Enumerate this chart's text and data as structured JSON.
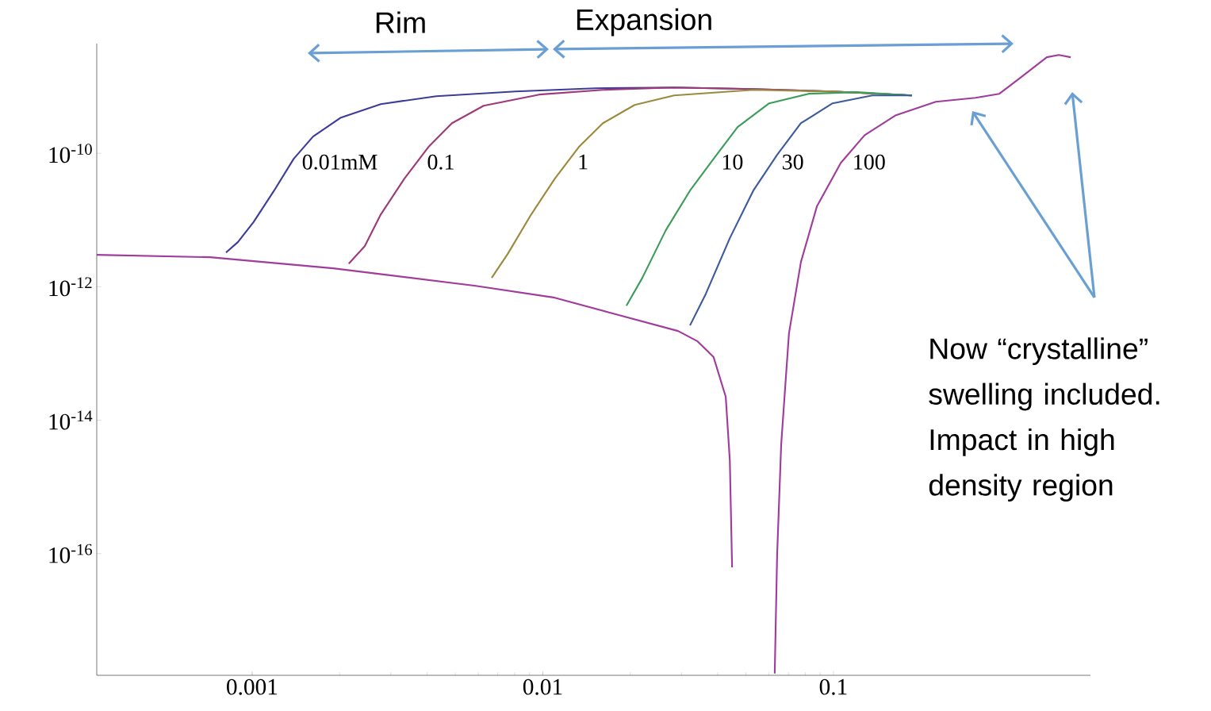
{
  "chart_data": {
    "type": "line",
    "log": "xy",
    "xlim": [
      0.000292,
      0.766
    ],
    "ylim": [
      1.5e-18,
      4.4e-09
    ],
    "xticks": [
      0.001,
      0.01,
      0.1
    ],
    "yticks": [
      {
        "value": 1e-10,
        "label": "10$^{-10}$"
      },
      {
        "value": 1e-12,
        "label": "10$^{-12}$"
      },
      {
        "value": 1e-14,
        "label": "10$^{-14}$"
      },
      {
        "value": 1e-16,
        "label": "10$^{-16}$"
      }
    ],
    "annotations": [
      "Rim",
      "Expansion",
      "Now “crystalline” swelling included. Impact in high density region"
    ],
    "series": [
      {
        "name": "0.01mM",
        "color": "#3d3d99",
        "x": [
          0.000813,
          0.000893,
          0.00101,
          0.00119,
          0.00139,
          0.00162,
          0.00202,
          0.00277,
          0.0043,
          0.00805,
          0.0151,
          0.0283,
          0.053,
          0.0993,
          0.186
        ],
        "values": [
          3.26e-12,
          4.66e-12,
          9.25e-12,
          2.76e-11,
          8.26e-11,
          1.78e-10,
          3.43e-10,
          5.46e-10,
          7.18e-10,
          8.45e-10,
          9.44e-10,
          9.7e-10,
          9.18e-10,
          8.45e-10,
          7.38e-10
        ]
      },
      {
        "name": "0.1",
        "color": "#9e3a78",
        "x": [
          0.00215,
          0.00244,
          0.00277,
          0.00334,
          0.00404,
          0.00487,
          0.00626,
          0.00972,
          0.0161,
          0.0283,
          0.053,
          0.0993,
          0.186
        ],
        "values": [
          2.22e-12,
          4.06e-12,
          1.21e-11,
          4.17e-11,
          1.24e-10,
          2.83e-10,
          5.16e-10,
          7.59e-10,
          8.93e-10,
          9.7e-10,
          9.18e-10,
          8.45e-10,
          7.38e-10
        ]
      },
      {
        "name": "1",
        "color": "#9c8a3c",
        "x": [
          0.00667,
          0.00757,
          0.00912,
          0.011,
          0.0133,
          0.0161,
          0.0207,
          0.0283,
          0.053,
          0.0993,
          0.186
        ],
        "values": [
          1.36e-12,
          3.09e-12,
          1.21e-11,
          4.17e-11,
          1.24e-10,
          2.83e-10,
          5.31e-10,
          7.38e-10,
          8.93e-10,
          8.45e-10,
          7.38e-10
        ]
      },
      {
        "name": "10",
        "color": "#3c9c5a",
        "x": [
          0.0194,
          0.022,
          0.0265,
          0.0321,
          0.0387,
          0.0468,
          0.0601,
          0.0822,
          0.12,
          0.186
        ],
        "values": [
          5.21e-13,
          1.36e-12,
          7.03e-12,
          2.76e-11,
          8.26e-11,
          2.47e-10,
          5.61e-10,
          7.8e-10,
          8.24e-10,
          7.38e-10
        ]
      },
      {
        "name": "30",
        "color": "#3c5a9c",
        "x": [
          0.0321,
          0.0364,
          0.044,
          0.053,
          0.064,
          0.0773,
          0.0993,
          0.136,
          0.186
        ],
        "values": [
          2.63e-13,
          7.85e-13,
          5.35e-12,
          2.76e-11,
          9.47e-11,
          2.83e-10,
          5.61e-10,
          7.38e-10,
          7.38e-10
        ]
      },
      {
        "name": "100",
        "color": "#a03c9c",
        "x": [
          0.000292,
          0.000716,
          0.0019,
          0.00588,
          0.011,
          0.0171,
          0.0292,
          0.0341,
          0.0387,
          0.0426,
          0.044,
          0.0448,
          0.053,
          0.0628,
          0.064,
          0.0661,
          0.0703,
          0.0773,
          0.0877,
          0.106,
          0.128,
          0.164,
          0.225,
          0.308,
          0.372,
          0.449,
          0.542,
          0.596,
          0.655
        ],
        "values": [
          3.01e-12,
          2.77e-12,
          1.89e-12,
          1.03e-12,
          6.85e-13,
          4.07e-13,
          2.17e-13,
          1.52e-13,
          8.8e-14,
          2.24e-14,
          2.5e-15,
          6.21e-17,
          null,
          1.6e-18,
          9.35e-17,
          4.33e-15,
          2e-13,
          2.35e-12,
          1.6e-11,
          7.2e-11,
          1.87e-10,
          3.72e-10,
          5.93e-10,
          6.79e-10,
          7.8e-10,
          1.46e-09,
          2.75e-09,
          2.98e-09,
          2.75e-09
        ]
      }
    ]
  }
}
